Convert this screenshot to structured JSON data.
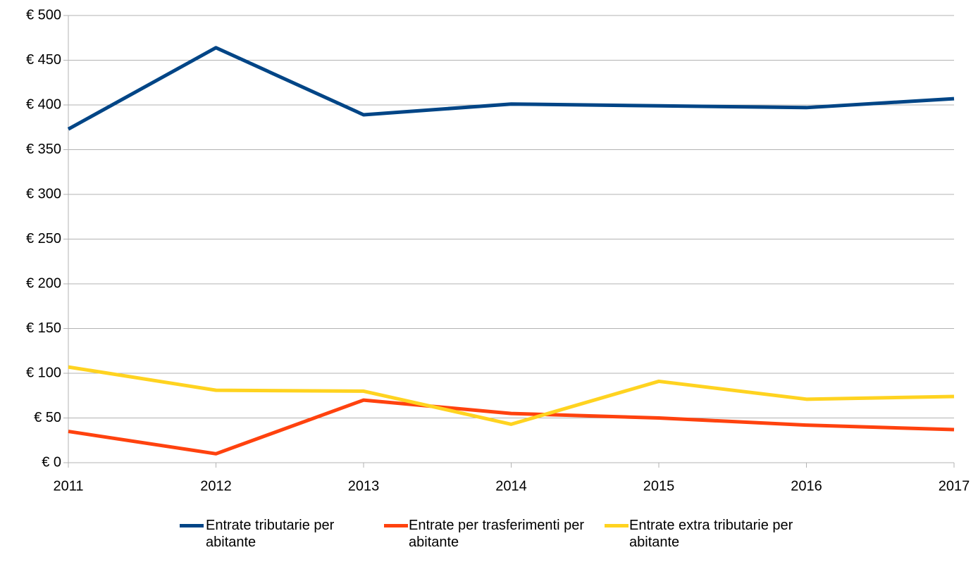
{
  "chart_data": {
    "type": "line",
    "categories": [
      "2011",
      "2012",
      "2013",
      "2014",
      "2015",
      "2016",
      "2017"
    ],
    "series": [
      {
        "name": "Entrate tributarie per abitante",
        "color": "#004586",
        "values": [
          373,
          464,
          389,
          401,
          399,
          397,
          407
        ]
      },
      {
        "name": "Entrate per trasferimenti per abitante",
        "color": "#ff420e",
        "values": [
          35,
          10,
          70,
          55,
          50,
          42,
          37
        ]
      },
      {
        "name": "Entrate extra tributarie per abitante",
        "color": "#ffd320",
        "values": [
          107,
          81,
          80,
          43,
          91,
          71,
          74
        ]
      }
    ],
    "ylim": [
      0,
      500
    ],
    "yticks": [
      {
        "value": 0,
        "label": "€ 0"
      },
      {
        "value": 50,
        "label": "€ 50"
      },
      {
        "value": 100,
        "label": "€ 100"
      },
      {
        "value": 150,
        "label": "€ 150"
      },
      {
        "value": 200,
        "label": "€ 200"
      },
      {
        "value": 250,
        "label": "€ 250"
      },
      {
        "value": 300,
        "label": "€ 300"
      },
      {
        "value": 350,
        "label": "€ 350"
      },
      {
        "value": 400,
        "label": "€ 400"
      },
      {
        "value": 450,
        "label": "€ 450"
      },
      {
        "value": 500,
        "label": "€ 500"
      }
    ],
    "grid": true,
    "legend": "bottom"
  }
}
